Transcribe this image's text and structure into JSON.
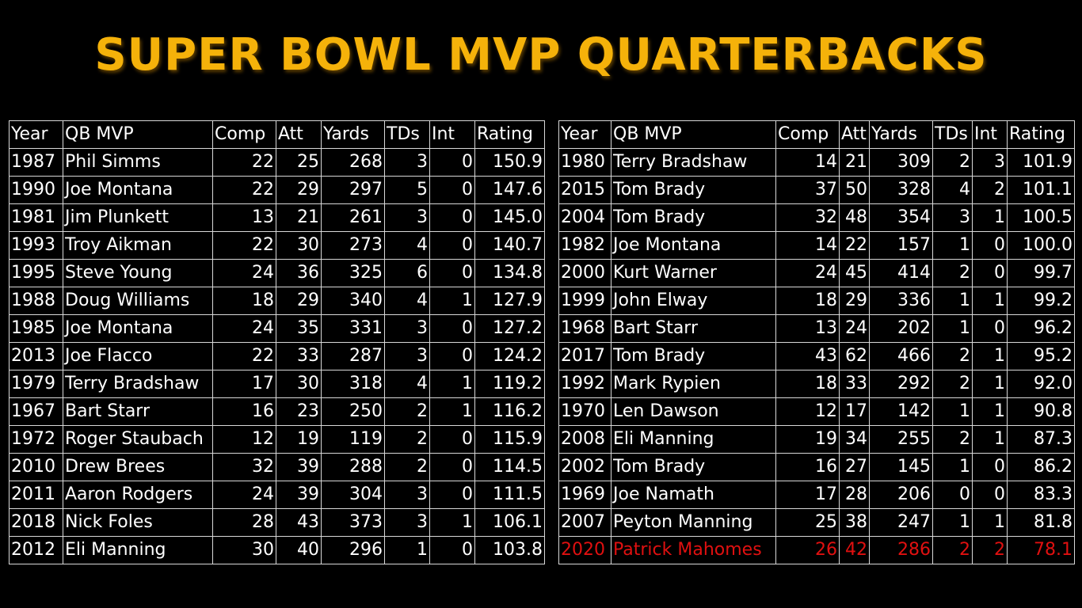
{
  "title": "SUPER BOWL MVP QUARTERBACKS",
  "colors": {
    "title": "#f5b20a",
    "text": "#ffffff",
    "highlight": "#e01010",
    "background": "#000000",
    "grid": "#d8d8d8"
  },
  "chart_data": [
    {
      "type": "table",
      "columns": [
        "Year",
        "QB MVP",
        "Comp",
        "Att",
        "Yards",
        "TDs",
        "Int",
        "Rating"
      ],
      "rows": [
        [
          "1987",
          "Phil Simms",
          "22",
          "25",
          "268",
          "3",
          "0",
          "150.9"
        ],
        [
          "1990",
          "Joe Montana",
          "22",
          "29",
          "297",
          "5",
          "0",
          "147.6"
        ],
        [
          "1981",
          "Jim Plunkett",
          "13",
          "21",
          "261",
          "3",
          "0",
          "145.0"
        ],
        [
          "1993",
          "Troy Aikman",
          "22",
          "30",
          "273",
          "4",
          "0",
          "140.7"
        ],
        [
          "1995",
          "Steve Young",
          "24",
          "36",
          "325",
          "6",
          "0",
          "134.8"
        ],
        [
          "1988",
          "Doug Williams",
          "18",
          "29",
          "340",
          "4",
          "1",
          "127.9"
        ],
        [
          "1985",
          "Joe Montana",
          "24",
          "35",
          "331",
          "3",
          "0",
          "127.2"
        ],
        [
          "2013",
          "Joe Flacco",
          "22",
          "33",
          "287",
          "3",
          "0",
          "124.2"
        ],
        [
          "1979",
          "Terry Bradshaw",
          "17",
          "30",
          "318",
          "4",
          "1",
          "119.2"
        ],
        [
          "1967",
          "Bart Starr",
          "16",
          "23",
          "250",
          "2",
          "1",
          "116.2"
        ],
        [
          "1972",
          "Roger Staubach",
          "12",
          "19",
          "119",
          "2",
          "0",
          "115.9"
        ],
        [
          "2010",
          "Drew Brees",
          "32",
          "39",
          "288",
          "2",
          "0",
          "114.5"
        ],
        [
          "2011",
          "Aaron Rodgers",
          "24",
          "39",
          "304",
          "3",
          "0",
          "111.5"
        ],
        [
          "2018",
          "Nick Foles",
          "28",
          "43",
          "373",
          "3",
          "1",
          "106.1"
        ],
        [
          "2012",
          "Eli Manning",
          "30",
          "40",
          "296",
          "1",
          "0",
          "103.8"
        ]
      ],
      "highlight_rows": []
    },
    {
      "type": "table",
      "columns": [
        "Year",
        "QB MVP",
        "Comp",
        "Att",
        "Yards",
        "TDs",
        "Int",
        "Rating"
      ],
      "rows": [
        [
          "1980",
          "Terry Bradshaw",
          "14",
          "21",
          "309",
          "2",
          "3",
          "101.9"
        ],
        [
          "2015",
          "Tom Brady",
          "37",
          "50",
          "328",
          "4",
          "2",
          "101.1"
        ],
        [
          "2004",
          "Tom Brady",
          "32",
          "48",
          "354",
          "3",
          "1",
          "100.5"
        ],
        [
          "1982",
          "Joe Montana",
          "14",
          "22",
          "157",
          "1",
          "0",
          "100.0"
        ],
        [
          "2000",
          "Kurt Warner",
          "24",
          "45",
          "414",
          "2",
          "0",
          "99.7"
        ],
        [
          "1999",
          "John Elway",
          "18",
          "29",
          "336",
          "1",
          "1",
          "99.2"
        ],
        [
          "1968",
          "Bart Starr",
          "13",
          "24",
          "202",
          "1",
          "0",
          "96.2"
        ],
        [
          "2017",
          "Tom Brady",
          "43",
          "62",
          "466",
          "2",
          "1",
          "95.2"
        ],
        [
          "1992",
          "Mark Rypien",
          "18",
          "33",
          "292",
          "2",
          "1",
          "92.0"
        ],
        [
          "1970",
          "Len Dawson",
          "12",
          "17",
          "142",
          "1",
          "1",
          "90.8"
        ],
        [
          "2008",
          "Eli Manning",
          "19",
          "34",
          "255",
          "2",
          "1",
          "87.3"
        ],
        [
          "2002",
          "Tom Brady",
          "16",
          "27",
          "145",
          "1",
          "0",
          "86.2"
        ],
        [
          "1969",
          "Joe Namath",
          "17",
          "28",
          "206",
          "0",
          "0",
          "83.3"
        ],
        [
          "2007",
          "Peyton Manning",
          "25",
          "38",
          "247",
          "1",
          "1",
          "81.8"
        ],
        [
          "2020",
          "Patrick Mahomes",
          "26",
          "42",
          "286",
          "2",
          "2",
          "78.1"
        ]
      ],
      "highlight_rows": [
        14
      ]
    }
  ]
}
